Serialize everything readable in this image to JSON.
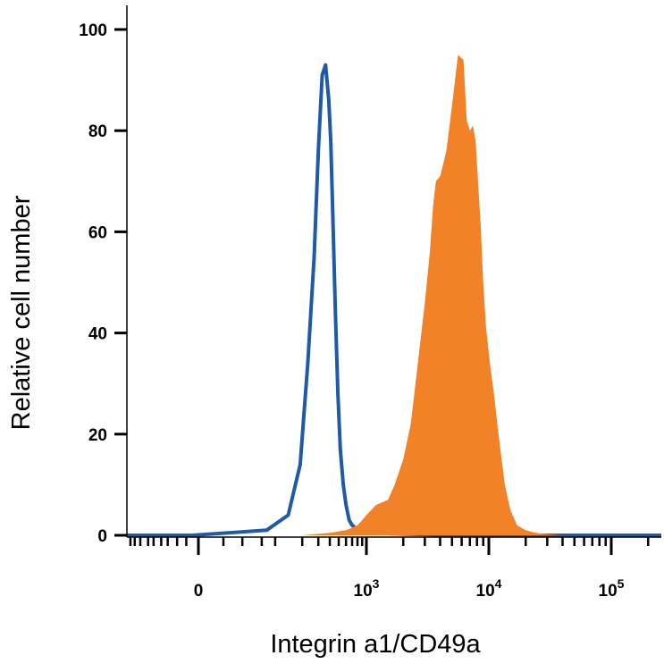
{
  "chart_data": {
    "type": "area",
    "title": "",
    "xlabel": "Integrin a1/CD49a",
    "ylabel": "Relative cell number",
    "x_scale": "biexponential",
    "xlim": [
      -600,
      400000
    ],
    "ylim": [
      0,
      105
    ],
    "grid": false,
    "legend": "none",
    "y_ticks": [
      0,
      20,
      40,
      60,
      80,
      100
    ],
    "x_ticks": [
      {
        "value": 0,
        "base": "0",
        "exp": ""
      },
      {
        "value": 1000,
        "base": "10",
        "exp": "3"
      },
      {
        "value": 10000,
        "base": "10",
        "exp": "4"
      },
      {
        "value": 100000,
        "base": "10",
        "exp": "5"
      }
    ],
    "series": [
      {
        "style": "outline",
        "color": "#1f5aa6",
        "x": [
          -600,
          -10,
          80,
          140,
          190,
          230,
          270,
          300,
          330,
          360,
          390,
          410,
          430,
          460,
          490,
          520,
          560,
          600,
          650,
          700,
          760,
          830,
          900,
          1000,
          1200,
          1600,
          2500,
          5000,
          20000,
          400000
        ],
        "y": [
          0,
          0,
          1,
          4,
          14,
          34,
          55,
          76,
          91,
          93,
          86,
          78,
          64,
          44,
          28,
          17,
          10,
          6,
          3,
          2,
          1.5,
          1,
          0.8,
          0.7,
          0.5,
          0.3,
          0.2,
          0,
          0,
          0
        ]
      },
      {
        "style": "filled",
        "color": "#f28228",
        "x": [
          -600,
          200,
          400,
          600,
          700,
          800,
          900,
          1000,
          1200,
          1500,
          1700,
          2000,
          2300,
          2600,
          3000,
          3300,
          3500,
          3700,
          4000,
          4500,
          5000,
          5600,
          6200,
          6600,
          7000,
          7400,
          7800,
          8200,
          8600,
          9000,
          9500,
          10200,
          11000,
          12000,
          13500,
          15000,
          17000,
          20000,
          24000,
          30000,
          40000,
          60000,
          400000
        ],
        "y": [
          0,
          0,
          0.5,
          1,
          1.5,
          2,
          3,
          4,
          6,
          7,
          10,
          15,
          22,
          33,
          46,
          56,
          65,
          70,
          71,
          76,
          85,
          95,
          94,
          82,
          80,
          81,
          78,
          69,
          61,
          50,
          41,
          34,
          28,
          20,
          10,
          5,
          2,
          1,
          0.5,
          0.2,
          0,
          0,
          0
        ]
      }
    ]
  }
}
